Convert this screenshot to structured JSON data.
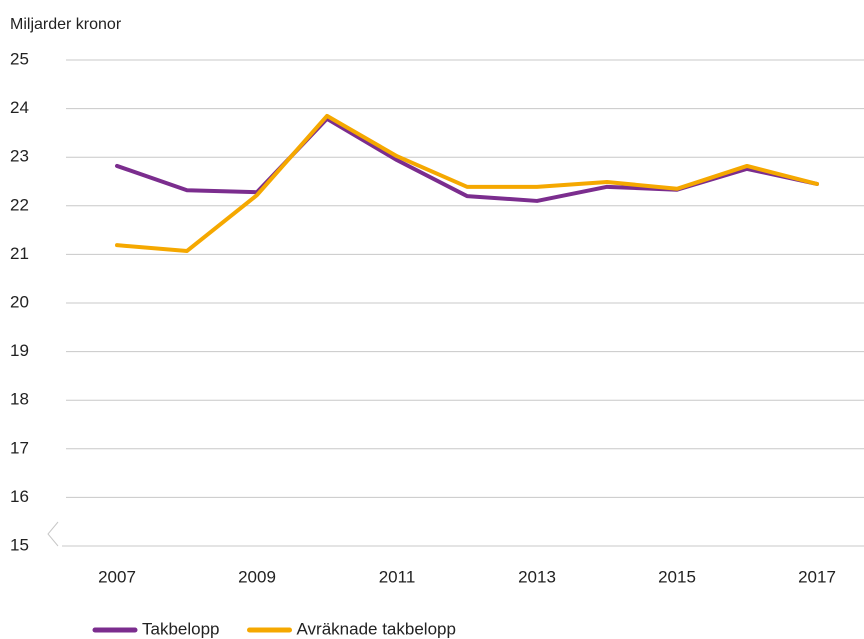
{
  "chart_data": {
    "type": "line",
    "y_label": "Miljarder kronor",
    "x": [
      2007,
      2008,
      2009,
      2010,
      2011,
      2012,
      2013,
      2014,
      2015,
      2016,
      2017
    ],
    "series": [
      {
        "name": "Takbelopp",
        "color": "#7b2d8e",
        "values": [
          22.82,
          22.32,
          22.28,
          23.79,
          22.94,
          22.2,
          22.1,
          22.39,
          22.33,
          22.76,
          22.45
        ]
      },
      {
        "name": "Avräknade takbelopp",
        "color": "#f5a800",
        "values": [
          21.19,
          21.07,
          22.22,
          23.85,
          23.02,
          22.39,
          22.39,
          22.49,
          22.35,
          22.82,
          22.45
        ]
      }
    ],
    "xlim": [
      2007,
      2017
    ],
    "xticks": [
      2007,
      2009,
      2011,
      2013,
      2015,
      2017
    ],
    "ylim": [
      15,
      25
    ],
    "yticks": [
      15,
      16,
      17,
      18,
      19,
      20,
      21,
      22,
      23,
      24,
      25
    ],
    "grid": true,
    "legend": "bottom"
  }
}
